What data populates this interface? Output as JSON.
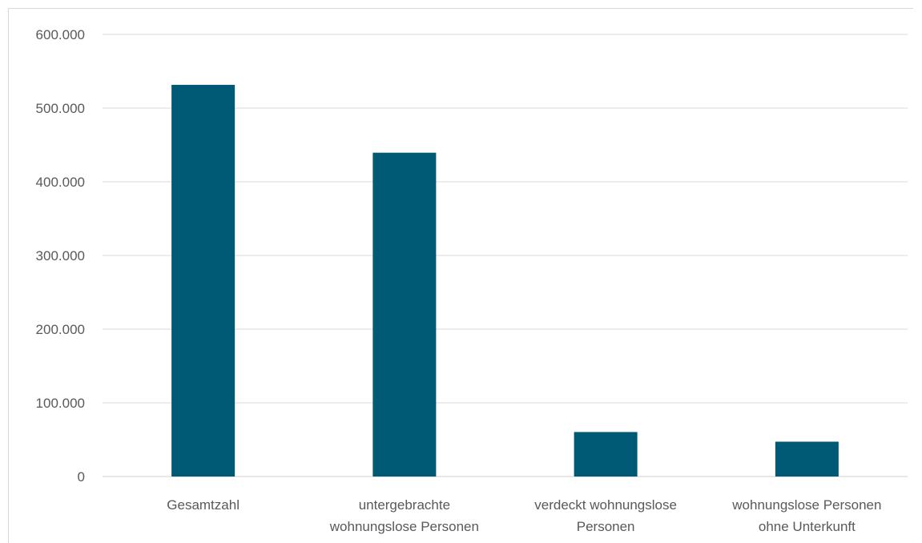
{
  "chart_data": {
    "type": "bar",
    "categories": [
      [
        "Gesamtzahl"
      ],
      [
        "untergebrachte",
        "wohnungslose Personen"
      ],
      [
        "verdeckt wohnungslose",
        "Personen"
      ],
      [
        "wohnungslose Personen",
        "ohne Unterkunft"
      ]
    ],
    "values": [
      531600,
      439500,
      60400,
      47300
    ],
    "ylim": [
      0,
      600000
    ],
    "yticks": [
      0,
      100000,
      200000,
      300000,
      400000,
      500000,
      600000
    ],
    "ytick_labels": [
      "0",
      "100.000",
      "200.000",
      "300.000",
      "400.000",
      "500.000",
      "600.000"
    ],
    "grid": true,
    "title": "",
    "xlabel": "",
    "ylabel": "",
    "colors": {
      "bar": "#005a75",
      "grid": "#d9d9d9",
      "text": "#595959"
    }
  }
}
